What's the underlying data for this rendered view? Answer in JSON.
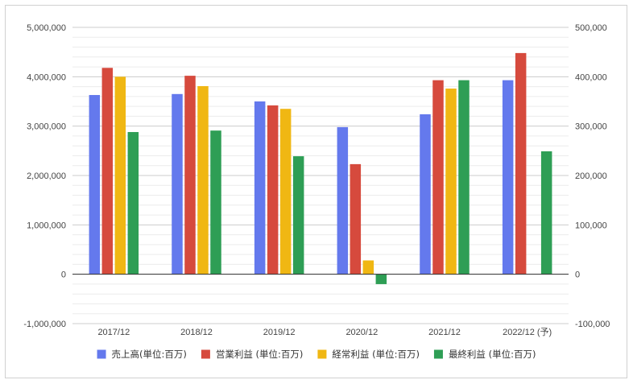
{
  "chart_data": {
    "type": "bar",
    "categories": [
      "2017/12",
      "2018/12",
      "2019/12",
      "2020/12",
      "2021/12",
      "2022/12 (予)"
    ],
    "y_left": {
      "ylim": [
        -1000000,
        5000000
      ],
      "ticks": [
        "-1,000,000",
        "0",
        "1,000,000",
        "2,000,000",
        "3,000,000",
        "4,000,000",
        "5,000,000"
      ],
      "tick_values": [
        -1000000,
        0,
        1000000,
        2000000,
        3000000,
        4000000,
        5000000
      ]
    },
    "y_right": {
      "ylim": [
        -100000,
        500000
      ],
      "ticks": [
        "-100,000",
        "0",
        "100,000",
        "200,000",
        "300,000",
        "400,000",
        "500,000"
      ],
      "tick_values": [
        -100000,
        0,
        100000,
        200000,
        300000,
        400000,
        500000
      ]
    },
    "series": [
      {
        "name": "売上高(単位:百万)",
        "color": "#6479ed",
        "axis": "left",
        "values": [
          3630000,
          3650000,
          3500000,
          2980000,
          3240000,
          3930000
        ]
      },
      {
        "name": "営業利益 (単位:百万)",
        "color": "#d64a3d",
        "axis": "right",
        "values": [
          418000,
          402000,
          342000,
          223000,
          393000,
          448000
        ]
      },
      {
        "name": "経常利益 (単位:百万)",
        "color": "#f0b713",
        "axis": "right",
        "values": [
          400000,
          381000,
          335000,
          28000,
          376000,
          null
        ]
      },
      {
        "name": "最終利益 (単位:百万)",
        "color": "#2e9e55",
        "axis": "right",
        "values": [
          288000,
          291000,
          239000,
          -20000,
          393000,
          249000
        ]
      }
    ],
    "grid": true,
    "legend_position": "bottom"
  }
}
